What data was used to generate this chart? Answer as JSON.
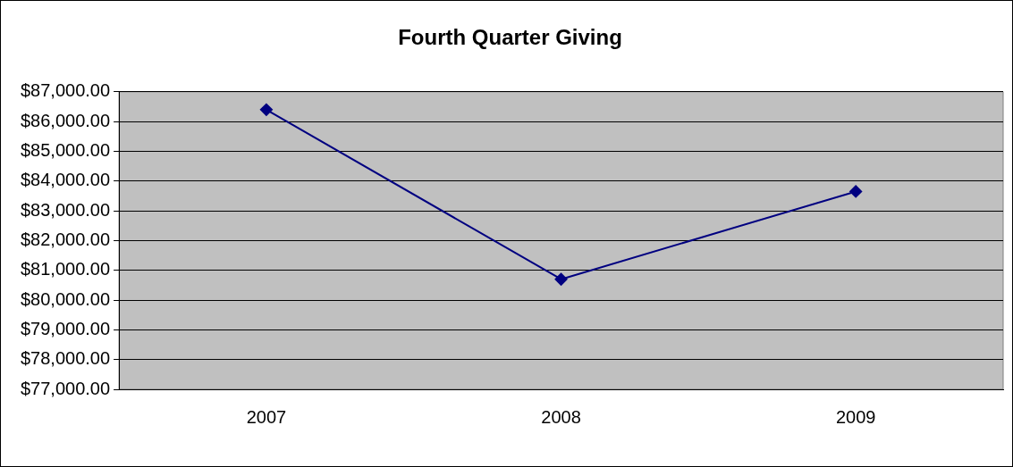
{
  "chart_data": {
    "type": "line",
    "title": "Fourth Quarter Giving",
    "categories": [
      "2007",
      "2008",
      "2009"
    ],
    "series": [
      {
        "color": "#000080",
        "values": [
          86400,
          80700,
          83650
        ]
      }
    ],
    "ylim": [
      77000,
      87000
    ],
    "yticks": [
      {
        "value": 77000,
        "label": "$77,000.00"
      },
      {
        "value": 78000,
        "label": "$78,000.00"
      },
      {
        "value": 79000,
        "label": "$79,000.00"
      },
      {
        "value": 80000,
        "label": "$80,000.00"
      },
      {
        "value": 81000,
        "label": "$81,000.00"
      },
      {
        "value": 82000,
        "label": "$82,000.00"
      },
      {
        "value": 83000,
        "label": "$83,000.00"
      },
      {
        "value": 84000,
        "label": "$84,000.00"
      },
      {
        "value": 85000,
        "label": "$85,000.00"
      },
      {
        "value": 86000,
        "label": "$86,000.00"
      },
      {
        "value": 87000,
        "label": "$87,000.00"
      }
    ],
    "grid": "y",
    "legend": false,
    "marker": "diamond",
    "line_style": "solid"
  }
}
